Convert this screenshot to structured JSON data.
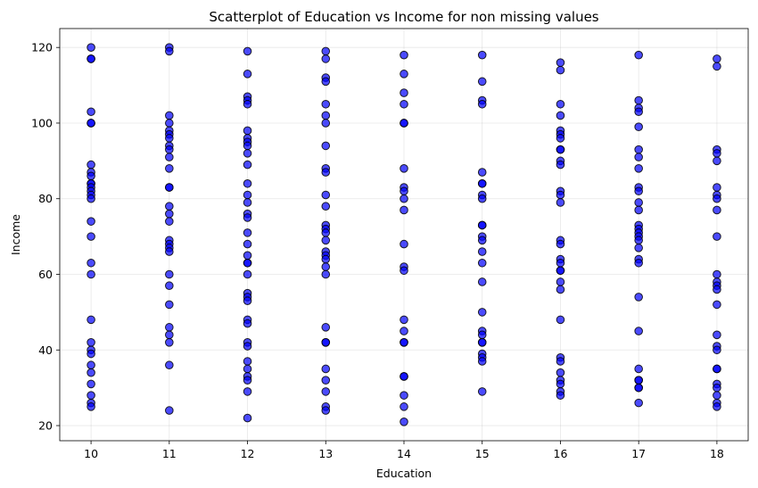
{
  "chart_data": {
    "type": "scatter",
    "title": "Scatterplot of Education vs Income for non missing values",
    "xlabel": "Education",
    "ylabel": "Income",
    "xlim": [
      9.6,
      18.4
    ],
    "ylim": [
      16,
      125
    ],
    "xticks": [
      10,
      11,
      12,
      13,
      14,
      15,
      16,
      17,
      18
    ],
    "yticks": [
      20,
      40,
      60,
      80,
      100,
      120
    ],
    "grid": true,
    "colors": {
      "marker_fill": "#0000ff",
      "marker_edge": "#000000"
    },
    "points": [
      [
        10,
        120
      ],
      [
        10,
        117
      ],
      [
        10,
        117
      ],
      [
        10,
        103
      ],
      [
        10,
        100
      ],
      [
        10,
        100
      ],
      [
        10,
        89
      ],
      [
        10,
        87
      ],
      [
        10,
        86
      ],
      [
        10,
        84
      ],
      [
        10,
        84
      ],
      [
        10,
        83
      ],
      [
        10,
        82
      ],
      [
        10,
        81
      ],
      [
        10,
        80
      ],
      [
        10,
        74
      ],
      [
        10,
        70
      ],
      [
        10,
        63
      ],
      [
        10,
        60
      ],
      [
        10,
        48
      ],
      [
        10,
        42
      ],
      [
        10,
        40
      ],
      [
        10,
        39
      ],
      [
        10,
        36
      ],
      [
        10,
        34
      ],
      [
        10,
        31
      ],
      [
        10,
        28
      ],
      [
        10,
        26
      ],
      [
        10,
        25
      ],
      [
        11,
        120
      ],
      [
        11,
        119
      ],
      [
        11,
        102
      ],
      [
        11,
        100
      ],
      [
        11,
        98
      ],
      [
        11,
        97
      ],
      [
        11,
        96
      ],
      [
        11,
        94
      ],
      [
        11,
        93
      ],
      [
        11,
        91
      ],
      [
        11,
        88
      ],
      [
        11,
        83
      ],
      [
        11,
        83
      ],
      [
        11,
        78
      ],
      [
        11,
        76
      ],
      [
        11,
        74
      ],
      [
        11,
        69
      ],
      [
        11,
        68
      ],
      [
        11,
        67
      ],
      [
        11,
        66
      ],
      [
        11,
        60
      ],
      [
        11,
        57
      ],
      [
        11,
        52
      ],
      [
        11,
        46
      ],
      [
        11,
        44
      ],
      [
        11,
        42
      ],
      [
        11,
        36
      ],
      [
        11,
        24
      ],
      [
        12,
        119
      ],
      [
        12,
        113
      ],
      [
        12,
        107
      ],
      [
        12,
        106
      ],
      [
        12,
        105
      ],
      [
        12,
        98
      ],
      [
        12,
        96
      ],
      [
        12,
        95
      ],
      [
        12,
        94
      ],
      [
        12,
        92
      ],
      [
        12,
        89
      ],
      [
        12,
        84
      ],
      [
        12,
        81
      ],
      [
        12,
        79
      ],
      [
        12,
        76
      ],
      [
        12,
        75
      ],
      [
        12,
        71
      ],
      [
        12,
        68
      ],
      [
        12,
        65
      ],
      [
        12,
        63
      ],
      [
        12,
        63
      ],
      [
        12,
        60
      ],
      [
        12,
        55
      ],
      [
        12,
        54
      ],
      [
        12,
        53
      ],
      [
        12,
        48
      ],
      [
        12,
        47
      ],
      [
        12,
        42
      ],
      [
        12,
        41
      ],
      [
        12,
        37
      ],
      [
        12,
        35
      ],
      [
        12,
        33
      ],
      [
        12,
        32
      ],
      [
        12,
        29
      ],
      [
        12,
        22
      ],
      [
        13,
        119
      ],
      [
        13,
        117
      ],
      [
        13,
        112
      ],
      [
        13,
        111
      ],
      [
        13,
        105
      ],
      [
        13,
        102
      ],
      [
        13,
        100
      ],
      [
        13,
        94
      ],
      [
        13,
        88
      ],
      [
        13,
        87
      ],
      [
        13,
        81
      ],
      [
        13,
        78
      ],
      [
        13,
        73
      ],
      [
        13,
        72
      ],
      [
        13,
        71
      ],
      [
        13,
        69
      ],
      [
        13,
        66
      ],
      [
        13,
        65
      ],
      [
        13,
        64
      ],
      [
        13,
        62
      ],
      [
        13,
        60
      ],
      [
        13,
        46
      ],
      [
        13,
        42
      ],
      [
        13,
        42
      ],
      [
        13,
        35
      ],
      [
        13,
        32
      ],
      [
        13,
        29
      ],
      [
        13,
        25
      ],
      [
        13,
        24
      ],
      [
        14,
        118
      ],
      [
        14,
        113
      ],
      [
        14,
        108
      ],
      [
        14,
        105
      ],
      [
        14,
        100
      ],
      [
        14,
        100
      ],
      [
        14,
        88
      ],
      [
        14,
        83
      ],
      [
        14,
        82
      ],
      [
        14,
        80
      ],
      [
        14,
        77
      ],
      [
        14,
        68
      ],
      [
        14,
        62
      ],
      [
        14,
        61
      ],
      [
        14,
        48
      ],
      [
        14,
        45
      ],
      [
        14,
        42
      ],
      [
        14,
        42
      ],
      [
        14,
        33
      ],
      [
        14,
        33
      ],
      [
        14,
        28
      ],
      [
        14,
        25
      ],
      [
        14,
        21
      ],
      [
        15,
        118
      ],
      [
        15,
        111
      ],
      [
        15,
        106
      ],
      [
        15,
        105
      ],
      [
        15,
        87
      ],
      [
        15,
        84
      ],
      [
        15,
        84
      ],
      [
        15,
        81
      ],
      [
        15,
        80
      ],
      [
        15,
        73
      ],
      [
        15,
        73
      ],
      [
        15,
        70
      ],
      [
        15,
        69
      ],
      [
        15,
        66
      ],
      [
        15,
        63
      ],
      [
        15,
        58
      ],
      [
        15,
        50
      ],
      [
        15,
        45
      ],
      [
        15,
        44
      ],
      [
        15,
        42
      ],
      [
        15,
        42
      ],
      [
        15,
        39
      ],
      [
        15,
        38
      ],
      [
        15,
        37
      ],
      [
        15,
        29
      ],
      [
        16,
        116
      ],
      [
        16,
        114
      ],
      [
        16,
        105
      ],
      [
        16,
        102
      ],
      [
        16,
        98
      ],
      [
        16,
        97
      ],
      [
        16,
        96
      ],
      [
        16,
        93
      ],
      [
        16,
        93
      ],
      [
        16,
        90
      ],
      [
        16,
        89
      ],
      [
        16,
        82
      ],
      [
        16,
        81
      ],
      [
        16,
        79
      ],
      [
        16,
        69
      ],
      [
        16,
        68
      ],
      [
        16,
        64
      ],
      [
        16,
        63
      ],
      [
        16,
        61
      ],
      [
        16,
        61
      ],
      [
        16,
        58
      ],
      [
        16,
        56
      ],
      [
        16,
        48
      ],
      [
        16,
        38
      ],
      [
        16,
        37
      ],
      [
        16,
        34
      ],
      [
        16,
        32
      ],
      [
        16,
        31
      ],
      [
        16,
        29
      ],
      [
        16,
        28
      ],
      [
        17,
        118
      ],
      [
        17,
        106
      ],
      [
        17,
        104
      ],
      [
        17,
        103
      ],
      [
        17,
        99
      ],
      [
        17,
        93
      ],
      [
        17,
        91
      ],
      [
        17,
        88
      ],
      [
        17,
        83
      ],
      [
        17,
        82
      ],
      [
        17,
        79
      ],
      [
        17,
        77
      ],
      [
        17,
        73
      ],
      [
        17,
        72
      ],
      [
        17,
        71
      ],
      [
        17,
        70
      ],
      [
        17,
        69
      ],
      [
        17,
        67
      ],
      [
        17,
        64
      ],
      [
        17,
        63
      ],
      [
        17,
        54
      ],
      [
        17,
        45
      ],
      [
        17,
        35
      ],
      [
        17,
        32
      ],
      [
        17,
        32
      ],
      [
        17,
        30
      ],
      [
        17,
        30
      ],
      [
        17,
        26
      ],
      [
        18,
        117
      ],
      [
        18,
        115
      ],
      [
        18,
        93
      ],
      [
        18,
        92
      ],
      [
        18,
        90
      ],
      [
        18,
        83
      ],
      [
        18,
        81
      ],
      [
        18,
        80
      ],
      [
        18,
        77
      ],
      [
        18,
        70
      ],
      [
        18,
        60
      ],
      [
        18,
        58
      ],
      [
        18,
        57
      ],
      [
        18,
        56
      ],
      [
        18,
        52
      ],
      [
        18,
        44
      ],
      [
        18,
        41
      ],
      [
        18,
        40
      ],
      [
        18,
        35
      ],
      [
        18,
        35
      ],
      [
        18,
        31
      ],
      [
        18,
        30
      ],
      [
        18,
        28
      ],
      [
        18,
        26
      ],
      [
        18,
        25
      ]
    ]
  }
}
